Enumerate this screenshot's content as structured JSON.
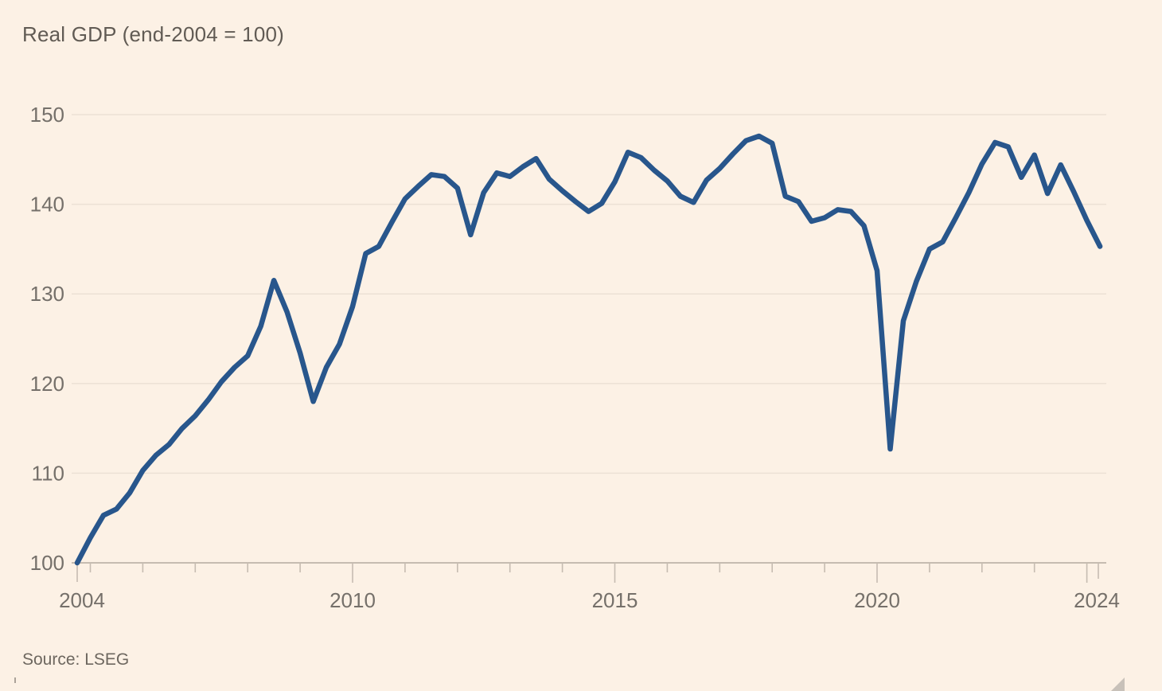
{
  "title": "Real GDP (end-2004 = 100)",
  "source": "Source: LSEG",
  "colors": {
    "background": "#FCF1E5",
    "line": "#28568C",
    "title_text": "#615B54",
    "source_text": "#6D675F",
    "tick_text": "#75706A",
    "gridline": "#ECE1D5",
    "axis": "#C6BCB1"
  },
  "chart_data": {
    "type": "line",
    "title": "Real GDP (end-2004 = 100)",
    "source": "Source: LSEG",
    "xlabel": "",
    "ylabel": "",
    "xlim": [
      2004.75,
      2024.37
    ],
    "ylim": [
      100,
      150
    ],
    "y_ticks": [
      100,
      110,
      120,
      130,
      140,
      150
    ],
    "x_minor_tick_years": [
      2005,
      2006,
      2007,
      2008,
      2009,
      2010,
      2011,
      2012,
      2013,
      2014,
      2015,
      2016,
      2017,
      2018,
      2019,
      2020,
      2021,
      2022,
      2023,
      2024
    ],
    "x_major_tick_years": [
      2010,
      2015,
      2020,
      2024
    ],
    "x_tick_labels": [
      "2004",
      "2010",
      "2015",
      "2020",
      "2024"
    ],
    "grid": "horizontal",
    "legend": "none",
    "series": [
      {
        "name": "Real GDP index (end-2004 = 100)",
        "color": "#28568C",
        "x": [
          2004.75,
          2005,
          2005.25,
          2005.5,
          2005.75,
          2006,
          2006.25,
          2006.5,
          2006.75,
          2007,
          2007.25,
          2007.5,
          2007.75,
          2008,
          2008.25,
          2008.5,
          2008.75,
          2009,
          2009.25,
          2009.5,
          2009.75,
          2010,
          2010.25,
          2010.5,
          2010.75,
          2011,
          2011.25,
          2011.5,
          2011.75,
          2012,
          2012.25,
          2012.5,
          2012.75,
          2013,
          2013.25,
          2013.5,
          2013.75,
          2014,
          2014.25,
          2014.5,
          2014.75,
          2015,
          2015.25,
          2015.5,
          2015.75,
          2016,
          2016.25,
          2016.5,
          2016.75,
          2017,
          2017.25,
          2017.5,
          2017.75,
          2018,
          2018.25,
          2018.5,
          2018.75,
          2019,
          2019.25,
          2019.5,
          2019.75,
          2020,
          2020.25,
          2020.5,
          2020.75,
          2021,
          2021.25,
          2021.5,
          2021.75,
          2022,
          2022.25,
          2022.5,
          2022.75,
          2023,
          2023.25,
          2023.5,
          2023.75,
          2024,
          2024.25
        ],
        "values": [
          100,
          102.8,
          105.3,
          106,
          107.8,
          110.3,
          112,
          113.2,
          115,
          116.4,
          118.2,
          120.2,
          121.8,
          123.1,
          126.4,
          131.5,
          128,
          123.4,
          118,
          121.8,
          124.4,
          128.6,
          134.5,
          135.3,
          138,
          140.6,
          142,
          143.3,
          143.1,
          141.8,
          136.6,
          141.3,
          143.5,
          143.1,
          144.2,
          145.1,
          142.8,
          141.5,
          140.3,
          139.2,
          140.1,
          142.5,
          145.8,
          145.2,
          143.8,
          142.6,
          140.9,
          140.2,
          142.7,
          144,
          145.6,
          147.1,
          147.6,
          146.8,
          140.9,
          140.3,
          138.1,
          138.5,
          139.4,
          139.2,
          137.6,
          132.6,
          112.7,
          127,
          131.4,
          135,
          135.8,
          138.5,
          141.3,
          144.5,
          146.9,
          146.4,
          143,
          145.5,
          141.2,
          144.4,
          141.4,
          138.2,
          135.3
        ]
      }
    ]
  }
}
